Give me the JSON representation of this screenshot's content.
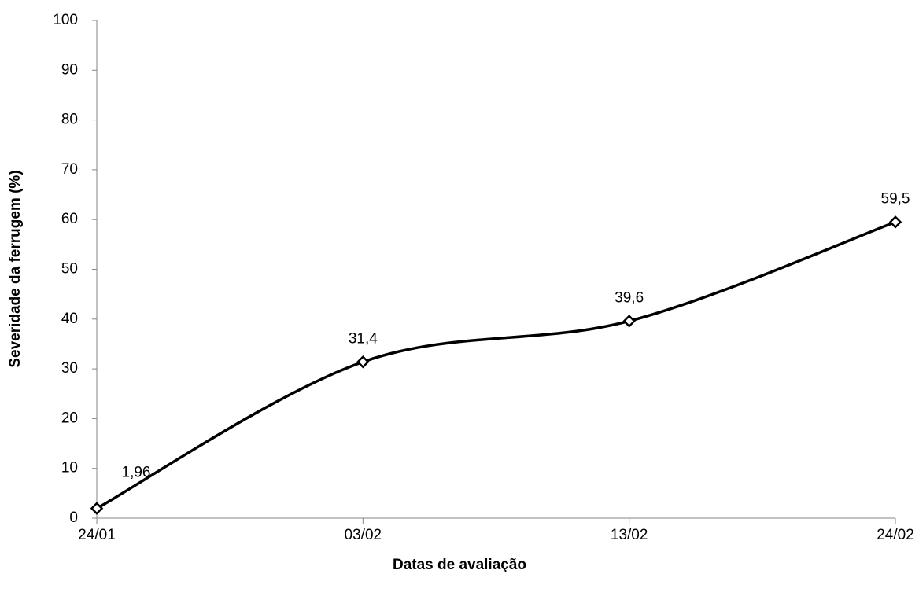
{
  "chart_data": {
    "type": "line",
    "x_label": "Datas de avaliação",
    "y_label": "Severidade da ferrugem (%)",
    "categories": [
      "24/01",
      "03/02",
      "13/02",
      "24/02"
    ],
    "values": [
      1.96,
      31.4,
      39.6,
      59.5
    ],
    "value_labels": [
      "1,96",
      "31,4",
      "39,6",
      "59,5"
    ],
    "color": "#000000",
    "smooth": true,
    "ylim": [
      0,
      100
    ],
    "yticks": [
      0,
      10,
      20,
      30,
      40,
      50,
      60,
      70,
      80,
      90,
      100
    ]
  }
}
